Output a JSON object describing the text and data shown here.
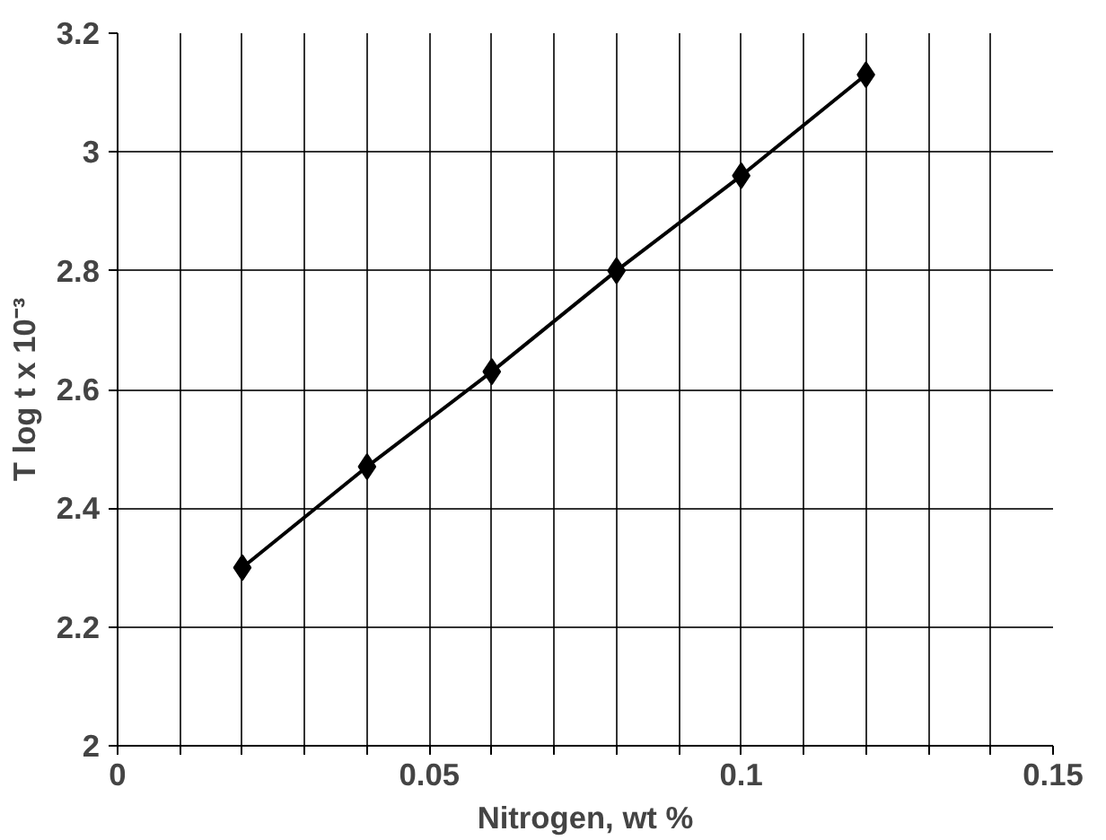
{
  "chart_data": {
    "type": "line",
    "xlabel": "Nitrogen, wt %",
    "ylabel": "T log t x 10⁻³",
    "x": [
      0.02,
      0.04,
      0.06,
      0.08,
      0.1,
      0.12
    ],
    "series": [
      {
        "color": "#000000",
        "values": [
          2.3,
          2.47,
          2.63,
          2.8,
          2.96,
          3.13
        ]
      }
    ],
    "xlim": [
      0,
      0.15
    ],
    "xticks": [
      0,
      {
        "value": 0.01,
        "label": null
      },
      {
        "value": 0.02,
        "label": null
      },
      {
        "value": 0.03,
        "label": null
      },
      {
        "value": 0.04,
        "label": null
      },
      0.05,
      {
        "value": 0.06,
        "label": null
      },
      {
        "value": 0.07,
        "label": null
      },
      {
        "value": 0.08,
        "label": null
      },
      {
        "value": 0.09,
        "label": null
      },
      0.1,
      {
        "value": 0.11,
        "label": null
      },
      {
        "value": 0.12,
        "label": null
      },
      {
        "value": 0.13,
        "label": null
      },
      {
        "value": 0.14,
        "label": null
      },
      0.15
    ],
    "ylim": [
      2,
      3.2
    ],
    "yticks": [
      2,
      2.2,
      2.4,
      2.6,
      2.8,
      3,
      3.2
    ],
    "grid": true,
    "marker": "diamond",
    "line_style": "solid"
  }
}
